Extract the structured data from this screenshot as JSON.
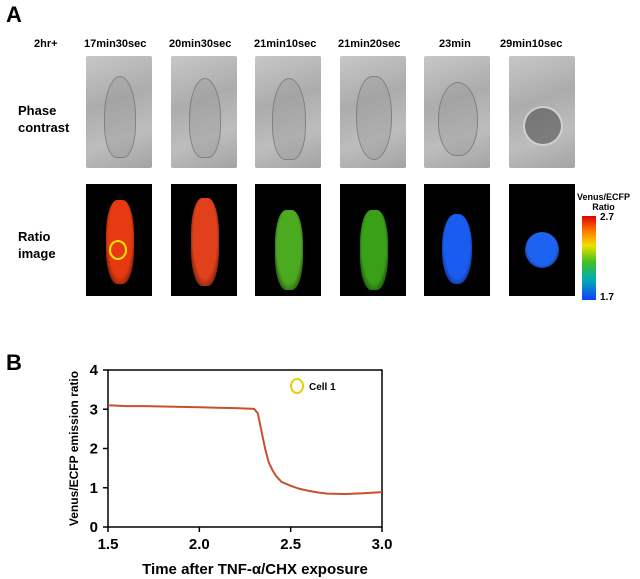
{
  "panel_a": {
    "letter": "A",
    "time_prefix": "2hr+",
    "times": [
      "17min30sec",
      "20min30sec",
      "21min10sec",
      "21min20sec",
      "23min",
      "29min10sec"
    ],
    "row_labels": {
      "phase": "Phase\ncontrast",
      "ratio": "Ratio\nimage"
    },
    "colorbar": {
      "title": "Venus/ECFP\nRatio",
      "max": "2.7",
      "min": "1.7"
    },
    "ratio_colors": [
      "#e83a10",
      "#e0401a",
      "#4caa20",
      "#3aa018",
      "#1a5cf0",
      "#1e62f0"
    ]
  },
  "panel_b": {
    "letter": "B",
    "chart_data": {
      "type": "line",
      "xlabel": "Time after TNF-α/CHX exposure",
      "ylabel": "Venus/ECFP emission ratio",
      "xlim": [
        1.5,
        3.0
      ],
      "ylim": [
        0,
        4
      ],
      "xticks": [
        "1.5",
        "2.0",
        "2.5",
        "3.0"
      ],
      "yticks": [
        "0",
        "1",
        "2",
        "3",
        "4"
      ],
      "legend": {
        "label": "Cell 1",
        "marker_color": "#e8d000",
        "placement": "top-right"
      },
      "series": [
        {
          "name": "Cell 1",
          "color": "#c8502a",
          "x": [
            1.5,
            1.6,
            1.7,
            1.8,
            1.9,
            2.0,
            2.1,
            2.2,
            2.3,
            2.32,
            2.34,
            2.36,
            2.38,
            2.4,
            2.42,
            2.45,
            2.5,
            2.55,
            2.6,
            2.65,
            2.7,
            2.8,
            2.9,
            3.0
          ],
          "y": [
            3.1,
            3.08,
            3.08,
            3.07,
            3.06,
            3.05,
            3.04,
            3.03,
            3.01,
            2.9,
            2.45,
            2.0,
            1.65,
            1.45,
            1.3,
            1.15,
            1.05,
            0.97,
            0.92,
            0.88,
            0.85,
            0.84,
            0.86,
            0.89
          ]
        }
      ]
    }
  }
}
